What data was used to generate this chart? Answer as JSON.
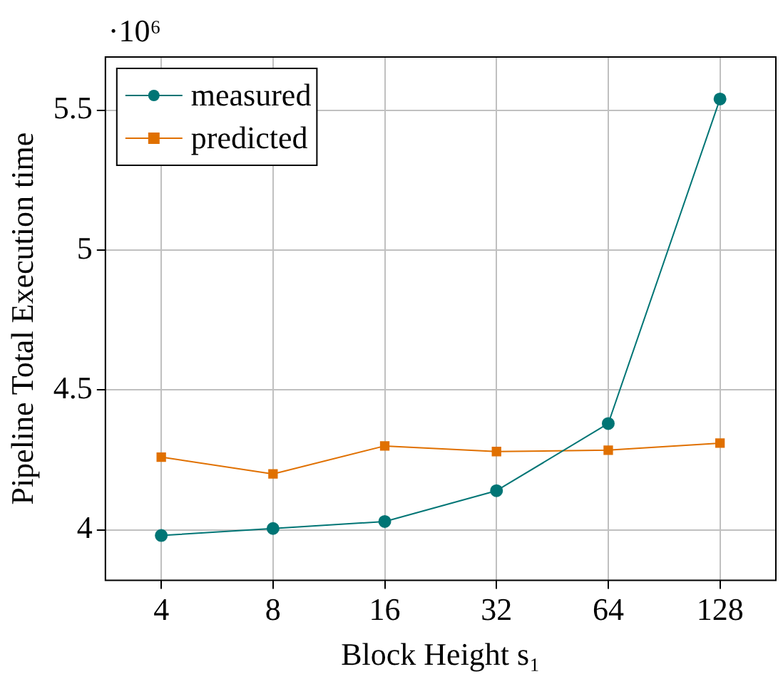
{
  "chart_data": {
    "type": "line",
    "xlabel": "Block Height s₁",
    "ylabel": "Pipeline Total Execution time",
    "categories": [
      "4",
      "8",
      "16",
      "32",
      "64",
      "128"
    ],
    "series": [
      {
        "name": "measured",
        "color": "#007575",
        "marker": "circle",
        "values": [
          3.98,
          4.005,
          4.03,
          4.14,
          4.38,
          5.54
        ]
      },
      {
        "name": "predicted",
        "color": "#e07000",
        "marker": "square",
        "values": [
          4.26,
          4.2,
          4.3,
          4.28,
          4.285,
          4.31
        ]
      }
    ],
    "ylim": [
      3.82,
      5.69
    ],
    "yticks": [
      4,
      4.5,
      5,
      5.5
    ],
    "grid": true,
    "legend": "top left",
    "line_style": "solid",
    "annotations": [
      "·10⁶"
    ]
  }
}
